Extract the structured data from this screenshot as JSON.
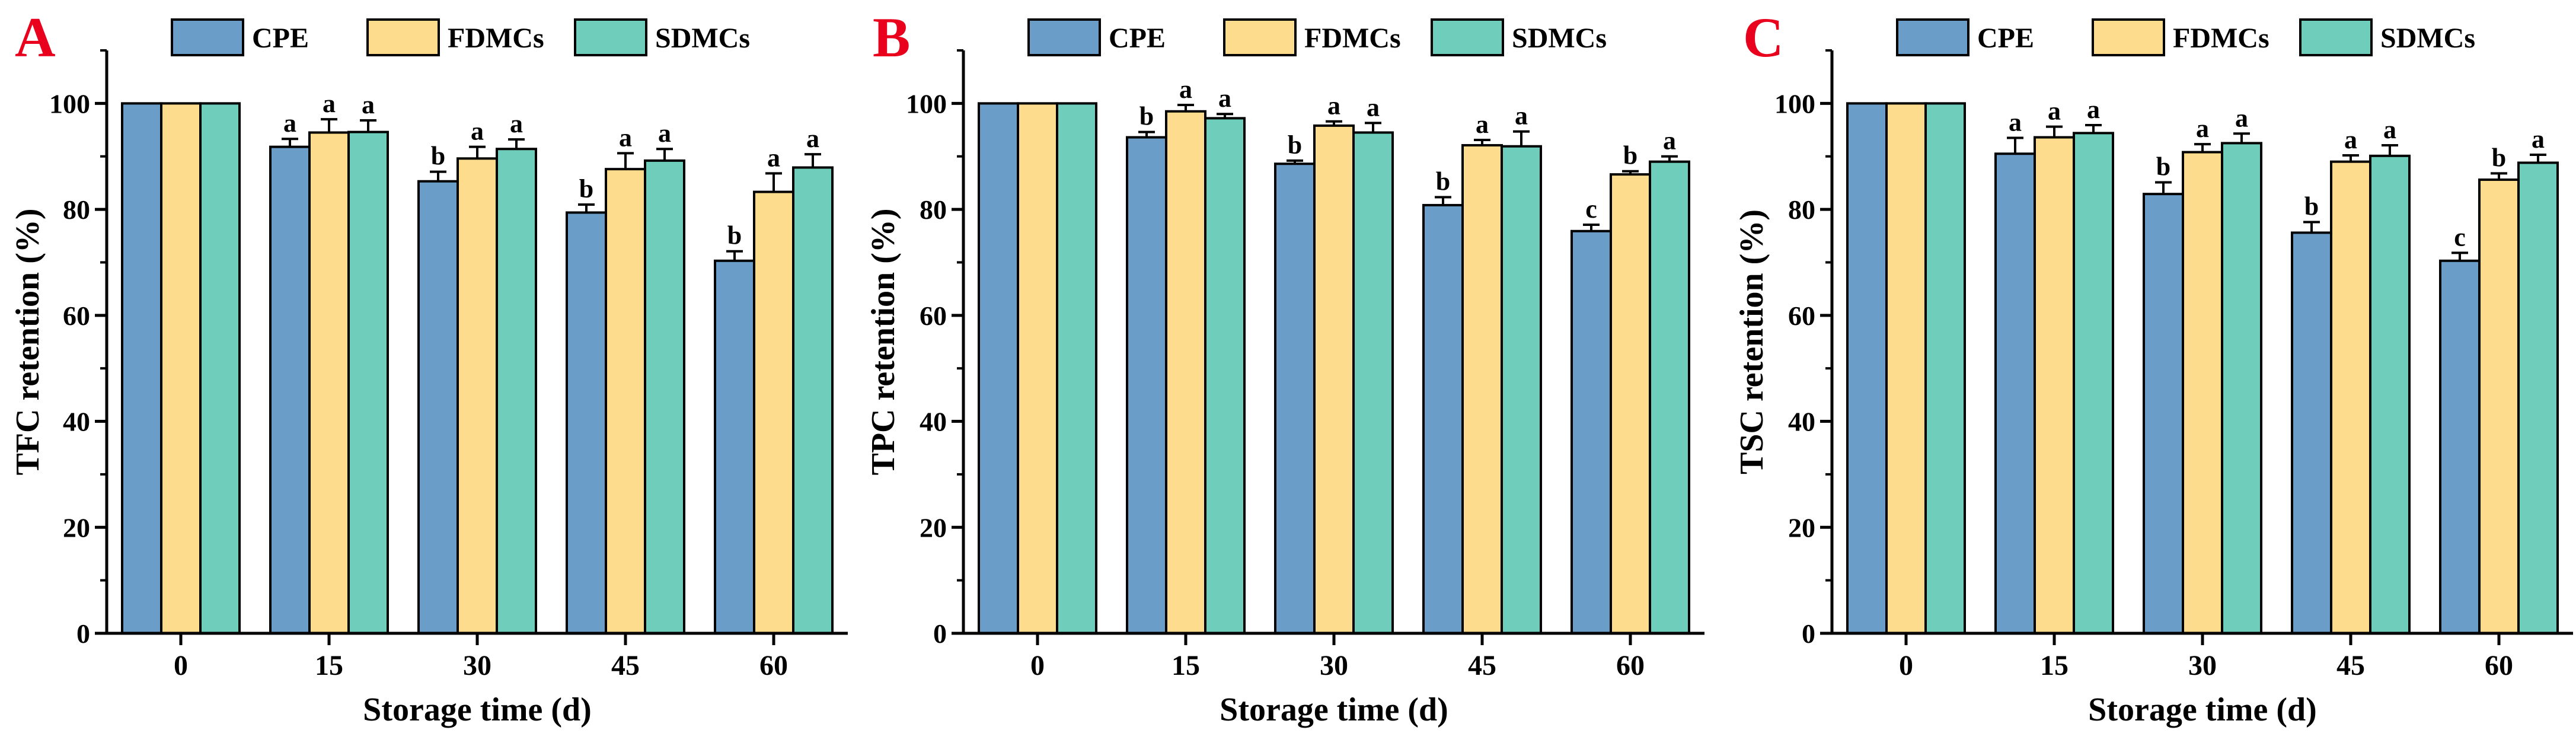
{
  "figure": {
    "legend": [
      {
        "name": "CPE",
        "color": "#6b9dc9"
      },
      {
        "name": "FDMCs",
        "color": "#fddc8d"
      },
      {
        "name": "SDMCs",
        "color": "#6fcdbb"
      }
    ],
    "bar_outline_color": "#000000",
    "panel_letter_color": "#e8001c"
  },
  "chart_data": [
    {
      "panel": "A",
      "type": "bar",
      "title": "",
      "xlabel": "Storage time (d)",
      "ylabel": "TFC retention (%)",
      "ylim": [
        0,
        110
      ],
      "yticks": [
        "0",
        "20",
        "40",
        "60",
        "80",
        "100"
      ],
      "categories": [
        "0",
        "15",
        "30",
        "45",
        "60"
      ],
      "series": [
        {
          "name": "CPE",
          "values": [
            100,
            91.8,
            85.3,
            79.4,
            70.3
          ],
          "errors": [
            0,
            1.5,
            1.8,
            1.5,
            1.8
          ],
          "letters": [
            "",
            "a",
            "b",
            "b",
            "b"
          ]
        },
        {
          "name": "FDMCs",
          "values": [
            100,
            94.5,
            89.6,
            87.6,
            83.3
          ],
          "errors": [
            0,
            2.5,
            2.2,
            3.0,
            3.5
          ],
          "letters": [
            "",
            "a",
            "a",
            "a",
            "a"
          ]
        },
        {
          "name": "SDMCs",
          "values": [
            100,
            94.6,
            91.4,
            89.2,
            87.9
          ],
          "errors": [
            0,
            2.2,
            1.8,
            2.2,
            2.5
          ],
          "letters": [
            "",
            "a",
            "a",
            "a",
            "a"
          ]
        }
      ]
    },
    {
      "panel": "B",
      "type": "bar",
      "title": "",
      "xlabel": "Storage time (d)",
      "ylabel": "TPC retention (%)",
      "ylim": [
        0,
        110
      ],
      "yticks": [
        "0",
        "20",
        "40",
        "60",
        "80",
        "100"
      ],
      "categories": [
        "0",
        "15",
        "30",
        "45",
        "60"
      ],
      "series": [
        {
          "name": "CPE",
          "values": [
            100,
            93.6,
            88.6,
            80.8,
            75.9
          ],
          "errors": [
            0,
            1.0,
            0.6,
            1.5,
            1.2
          ],
          "letters": [
            "",
            "b",
            "b",
            "b",
            "c"
          ]
        },
        {
          "name": "FDMCs",
          "values": [
            100,
            98.5,
            95.8,
            92.1,
            86.6
          ],
          "errors": [
            0,
            1.2,
            0.8,
            1.0,
            0.6
          ],
          "letters": [
            "",
            "a",
            "a",
            "a",
            "b"
          ]
        },
        {
          "name": "SDMCs",
          "values": [
            100,
            97.2,
            94.5,
            91.9,
            89.0
          ],
          "errors": [
            0,
            0.8,
            1.8,
            2.8,
            1.0
          ],
          "letters": [
            "",
            "a",
            "a",
            "a",
            "a"
          ]
        }
      ]
    },
    {
      "panel": "C",
      "type": "bar",
      "title": "",
      "xlabel": "Storage time (d)",
      "ylabel": "TSC retention (%)",
      "ylim": [
        0,
        110
      ],
      "yticks": [
        "0",
        "20",
        "40",
        "60",
        "80",
        "100"
      ],
      "categories": [
        "0",
        "15",
        "30",
        "45",
        "60"
      ],
      "series": [
        {
          "name": "CPE",
          "values": [
            100,
            90.5,
            82.9,
            75.6,
            70.3
          ],
          "errors": [
            0,
            3.0,
            2.2,
            2.0,
            1.5
          ],
          "letters": [
            "",
            "a",
            "b",
            "b",
            "c"
          ]
        },
        {
          "name": "FDMCs",
          "values": [
            100,
            93.6,
            90.8,
            89.0,
            85.6
          ],
          "errors": [
            0,
            2.0,
            1.5,
            1.2,
            1.2
          ],
          "letters": [
            "",
            "a",
            "a",
            "a",
            "b"
          ]
        },
        {
          "name": "SDMCs",
          "values": [
            100,
            94.4,
            92.5,
            90.1,
            88.8
          ],
          "errors": [
            0,
            1.5,
            1.8,
            2.0,
            1.5
          ],
          "letters": [
            "",
            "a",
            "a",
            "a",
            "a"
          ]
        }
      ]
    }
  ]
}
